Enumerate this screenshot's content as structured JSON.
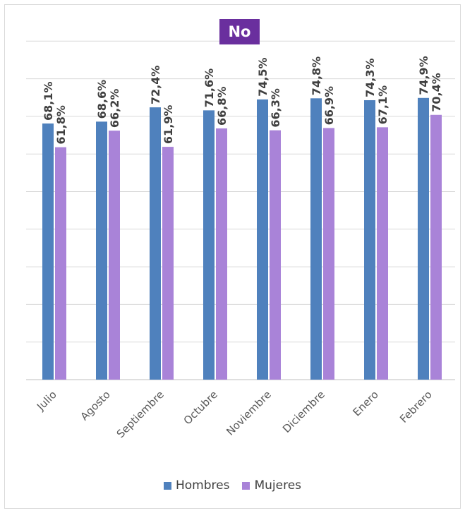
{
  "chart_data": {
    "type": "bar",
    "title": "No",
    "categories": [
      "Julio",
      "Agosto",
      "Septiembre",
      "Octubre",
      "Noviembre",
      "Diciembre",
      "Enero",
      "Febrero"
    ],
    "series": [
      {
        "name": "Hombres",
        "color": "#4f81bd",
        "values": [
          68.1,
          68.6,
          72.4,
          71.6,
          74.5,
          74.8,
          74.3,
          74.9
        ],
        "labels": [
          "68,1%",
          "68,6%",
          "72,4%",
          "71,6%",
          "74,5%",
          "74,8%",
          "74,3%",
          "74,9%"
        ]
      },
      {
        "name": "Mujeres",
        "color": "#a983d8",
        "values": [
          61.8,
          66.2,
          61.9,
          66.8,
          66.3,
          66.9,
          67.1,
          70.4
        ],
        "labels": [
          "61,8%",
          "66,2%",
          "61,9%",
          "66,8%",
          "66,3%",
          "66,9%",
          "67,1%",
          "70,4%"
        ]
      }
    ],
    "ylim": [
      0,
      100
    ],
    "grid": true,
    "legend_position": "bottom",
    "title_color": "#6a2f9e"
  }
}
